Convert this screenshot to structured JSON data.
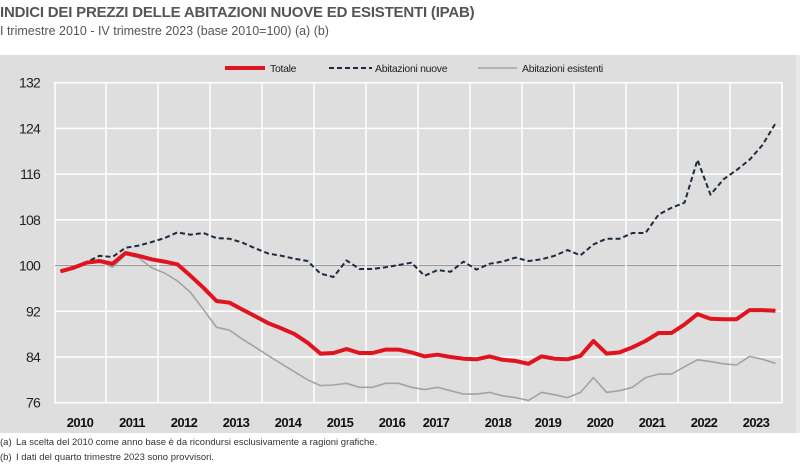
{
  "header": {
    "title": "INDICI DEI PREZZI DELLE ABITAZIONI NUOVE ED ESISTENTI (IPAB)",
    "subtitle": "I trimestre 2010 - IV trimestre 2023 (base 2010=100) (a) (b)"
  },
  "notes": [
    {
      "tag": "(a)",
      "text": "La scelta del 2010 come anno base è da ricondursi esclusivamente a ragioni grafiche."
    },
    {
      "tag": "(b)",
      "text": "I dati del quarto trimestre 2023 sono provvisori."
    }
  ],
  "colors": {
    "totale": "#e0141e",
    "nuove": "#1c2b3e",
    "esistenti": "#a3a3a3",
    "panel": "#dedede",
    "grid": "#ffffff",
    "baseline": "#999999"
  },
  "chart_data": {
    "type": "line",
    "title": "INDICI DEI PREZZI DELLE ABITAZIONI NUOVE ED ESISTENTI (IPAB)",
    "subtitle": "I trimestre 2010 - IV trimestre 2023 (base 2010=100) (a) (b)",
    "xlabel": "",
    "ylabel": "",
    "ylim": [
      76,
      132
    ],
    "yticks": [
      76,
      84,
      92,
      100,
      108,
      116,
      124,
      132
    ],
    "reference_line": 100,
    "grid": true,
    "legend_position": "top-center",
    "x_tick_labels": [
      "2010",
      "2011",
      "2012",
      "2013",
      "2014",
      "2015",
      "2016",
      "2017",
      "2018",
      "2019",
      "2020",
      "2021",
      "2022",
      "2023"
    ],
    "x": [
      "2010-Q1",
      "2010-Q2",
      "2010-Q3",
      "2010-Q4",
      "2011-Q1",
      "2011-Q2",
      "2011-Q3",
      "2011-Q4",
      "2012-Q1",
      "2012-Q2",
      "2012-Q3",
      "2012-Q4",
      "2013-Q1",
      "2013-Q2",
      "2013-Q3",
      "2013-Q4",
      "2014-Q1",
      "2014-Q2",
      "2014-Q3",
      "2014-Q4",
      "2015-Q1",
      "2015-Q2",
      "2015-Q3",
      "2015-Q4",
      "2016-Q1",
      "2016-Q2",
      "2016-Q3",
      "2016-Q4",
      "2017-Q1",
      "2017-Q2",
      "2017-Q3",
      "2017-Q4",
      "2018-Q1",
      "2018-Q2",
      "2018-Q3",
      "2018-Q4",
      "2019-Q1",
      "2019-Q2",
      "2019-Q3",
      "2019-Q4",
      "2020-Q1",
      "2020-Q2",
      "2020-Q3",
      "2020-Q4",
      "2021-Q1",
      "2021-Q2",
      "2021-Q3",
      "2021-Q4",
      "2022-Q1",
      "2022-Q2",
      "2022-Q3",
      "2022-Q4",
      "2023-Q1",
      "2023-Q2",
      "2023-Q3",
      "2023-Q4"
    ],
    "series": [
      {
        "name": "Totale",
        "key": "totale",
        "style": "solid-thick",
        "values": [
          99.0,
          99.6,
          100.5,
          100.8,
          100.3,
          102.2,
          101.7,
          101.1,
          100.7,
          100.2,
          98.2,
          96.1,
          93.8,
          93.5,
          92.3,
          91.1,
          89.9,
          89.0,
          88.0,
          86.5,
          84.6,
          84.7,
          85.4,
          84.7,
          84.7,
          85.3,
          85.3,
          84.8,
          84.1,
          84.4,
          84.0,
          83.7,
          83.6,
          84.1,
          83.5,
          83.3,
          82.8,
          84.1,
          83.7,
          83.6,
          84.2,
          86.8,
          84.6,
          84.8,
          85.7,
          86.8,
          88.2,
          88.2,
          89.7,
          91.5,
          90.7,
          90.6,
          90.6,
          92.2,
          92.2,
          92.1
        ]
      },
      {
        "name": "Abitazioni nuove",
        "key": "nuove",
        "style": "dashed",
        "values": [
          99.0,
          99.8,
          100.6,
          101.7,
          101.5,
          103.1,
          103.5,
          104.1,
          104.8,
          105.8,
          105.4,
          105.7,
          104.8,
          104.7,
          104.0,
          103.0,
          102.1,
          101.7,
          101.2,
          100.8,
          98.6,
          98.0,
          100.9,
          99.4,
          99.4,
          99.7,
          100.1,
          100.5,
          98.2,
          99.2,
          98.9,
          100.7,
          99.3,
          100.3,
          100.7,
          101.4,
          100.8,
          101.1,
          101.7,
          102.7,
          101.8,
          103.7,
          104.7,
          104.7,
          105.7,
          105.7,
          108.9,
          110.1,
          111.0,
          118.5,
          112.4,
          115.1,
          116.7,
          118.5,
          121.1,
          124.9
        ]
      },
      {
        "name": "Abitazioni esistenti",
        "key": "esistenti",
        "style": "solid-thin",
        "values": [
          98.9,
          99.6,
          100.5,
          100.8,
          99.7,
          101.9,
          101.4,
          99.6,
          98.7,
          97.3,
          95.3,
          92.3,
          89.2,
          88.7,
          87.1,
          85.7,
          84.2,
          82.8,
          81.4,
          80.0,
          79.0,
          79.1,
          79.4,
          78.7,
          78.7,
          79.4,
          79.4,
          78.7,
          78.3,
          78.7,
          78.1,
          77.5,
          77.5,
          77.8,
          77.2,
          76.9,
          76.4,
          77.8,
          77.4,
          76.9,
          77.8,
          80.4,
          77.8,
          78.1,
          78.7,
          80.4,
          81.0,
          81.0,
          82.3,
          83.5,
          83.2,
          82.8,
          82.6,
          84.1,
          83.6,
          82.9
        ]
      }
    ]
  }
}
